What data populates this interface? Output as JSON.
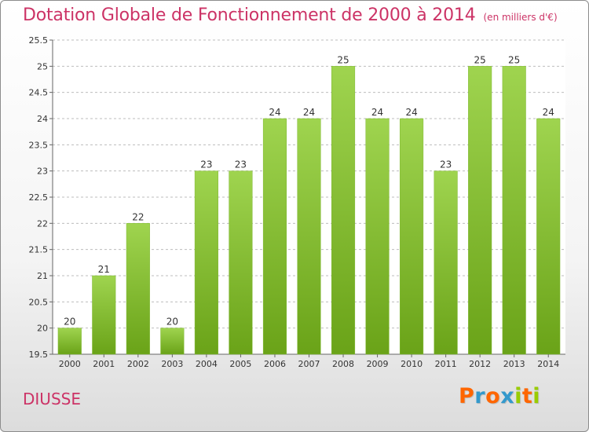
{
  "header": {
    "title": "Dotation Globale de Fonctionnement de 2000 à 2014",
    "subtitle": "(en milliers d'€)"
  },
  "footer": {
    "commune": "DIUSSE",
    "logo": [
      "P",
      "r",
      "o",
      "x",
      "i",
      "t",
      "i"
    ]
  },
  "colors": {
    "title": "#cc3366",
    "bar_light": "#9fd44f",
    "bar_dark": "#6aa318",
    "grid": "#bdbdbd",
    "logo": [
      "#ff6600",
      "#3399cc",
      "#ff6600",
      "#3399cc",
      "#99cc00",
      "#ff6600",
      "#99cc00"
    ]
  },
  "chart_data": {
    "type": "bar",
    "categories": [
      "2000",
      "2001",
      "2002",
      "2003",
      "2004",
      "2005",
      "2006",
      "2007",
      "2008",
      "2009",
      "2010",
      "2011",
      "2012",
      "2013",
      "2014"
    ],
    "values": [
      20,
      21,
      22,
      20,
      23,
      23,
      24,
      24,
      25,
      24,
      24,
      23,
      25,
      25,
      24
    ],
    "value_labels": [
      "20",
      "21",
      "22",
      "20",
      "23",
      "23",
      "24",
      "24",
      "25",
      "24",
      "24",
      "23",
      "25",
      "25",
      "24"
    ],
    "ylim": [
      19.5,
      25.5
    ],
    "yticks": [
      19.5,
      20,
      20.5,
      21,
      21.5,
      22,
      22.5,
      23,
      23.5,
      24,
      24.5,
      25,
      25.5
    ],
    "ytick_labels": [
      "19.5",
      "20",
      "20.5",
      "21",
      "21.5",
      "22",
      "22.5",
      "23",
      "23.5",
      "24",
      "24.5",
      "25",
      "25.5"
    ],
    "grid": true,
    "xlabel": "",
    "ylabel": ""
  }
}
